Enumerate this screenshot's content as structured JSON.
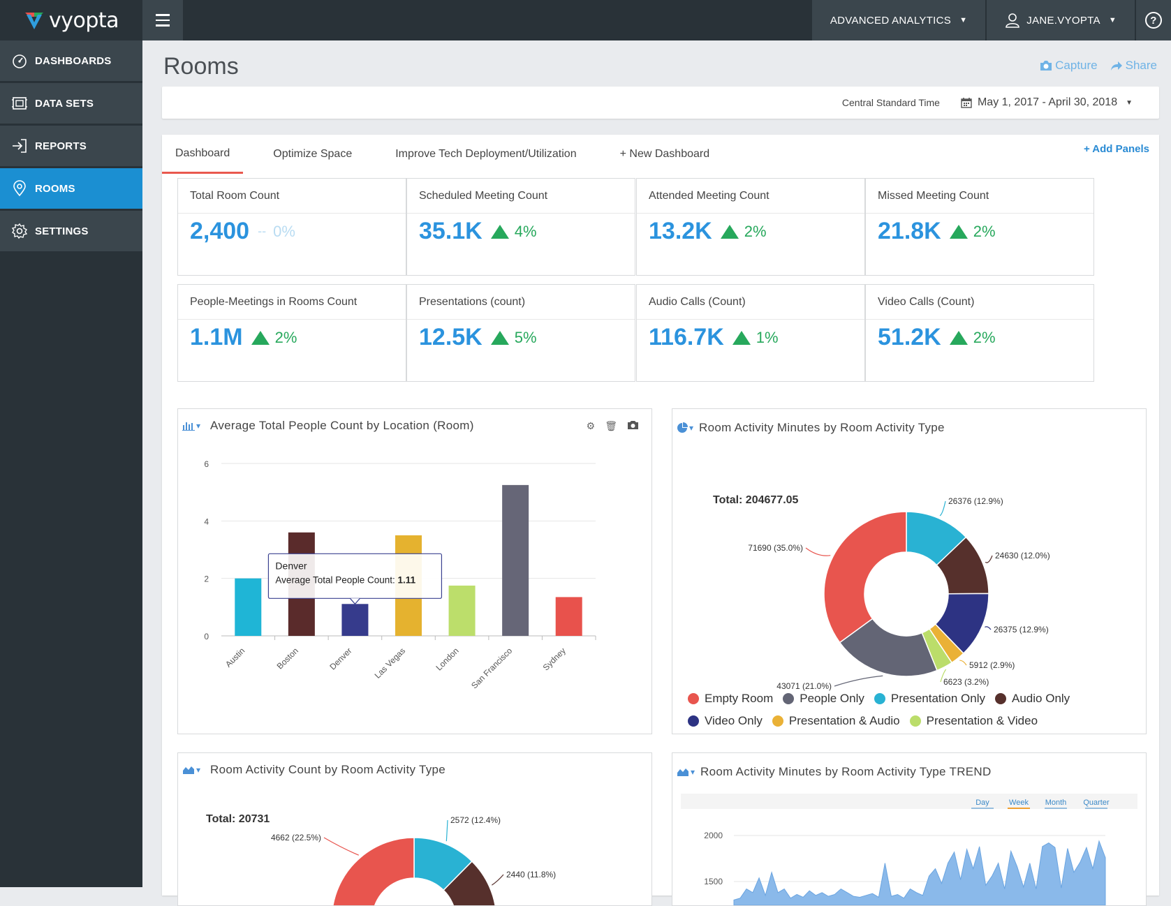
{
  "brand": {
    "name": "vyopta"
  },
  "topbar": {
    "analytics_label": "ADVANCED ANALYTICS",
    "user_label": "JANE.VYOPTA",
    "help_label": "?"
  },
  "sidebar": {
    "items": [
      {
        "label": "DASHBOARDS",
        "icon": "gauge-icon"
      },
      {
        "label": "DATA SETS",
        "icon": "dataset-icon"
      },
      {
        "label": "REPORTS",
        "icon": "login-arrow-icon"
      },
      {
        "label": "ROOMS",
        "icon": "location-pin-icon",
        "active": true
      },
      {
        "label": "SETTINGS",
        "icon": "gear-icon"
      }
    ]
  },
  "page": {
    "title": "Rooms",
    "capture_label": "Capture",
    "share_label": "Share",
    "timezone": "Central Standard Time",
    "date_range": "May 1, 2017 - April 30, 2018"
  },
  "tabs": [
    {
      "label": "Dashboard",
      "active": true
    },
    {
      "label": "Optimize Space"
    },
    {
      "label": "Improve Tech Deployment/Utilization"
    },
    {
      "label": "+ New Dashboard"
    }
  ],
  "add_panels_label": "+ Add Panels",
  "stats": [
    {
      "title": "Total Room Count",
      "value": "2,400",
      "delta": "0%",
      "trend": "flat",
      "flat_sep": "--"
    },
    {
      "title": "Scheduled Meeting Count",
      "value": "35.1K",
      "delta": "4%",
      "trend": "up"
    },
    {
      "title": "Attended Meeting Count",
      "value": "13.2K",
      "delta": "2%",
      "trend": "up"
    },
    {
      "title": "Missed Meeting Count",
      "value": "21.8K",
      "delta": "2%",
      "trend": "up"
    },
    {
      "title": "People-Meetings in Rooms Count",
      "value": "1.1M",
      "delta": "2%",
      "trend": "up"
    },
    {
      "title": "Presentations (count)",
      "value": "12.5K",
      "delta": "5%",
      "trend": "up"
    },
    {
      "title": "Audio Calls (Count)",
      "value": "116.7K",
      "delta": "1%",
      "trend": "up"
    },
    {
      "title": "Video Calls (Count)",
      "value": "51.2K",
      "delta": "2%",
      "trend": "up"
    }
  ],
  "panels": {
    "bar": {
      "title": "Average Total People Count by Location (Room)"
    },
    "donut1": {
      "title": "Room Activity Minutes by Room Activity Type",
      "total": "Total: 204677.05"
    },
    "donut2": {
      "title": "Room Activity Count by Room Activity Type",
      "total": "Total: 20731"
    },
    "trend": {
      "title": "Room Activity Minutes by Room Activity Type TREND",
      "ranges": [
        "Day",
        "Week",
        "Month",
        "Quarter"
      ],
      "active_range": "Week"
    }
  },
  "legend": [
    {
      "label": "Empty Room",
      "color": "#e8554e"
    },
    {
      "label": "People Only",
      "color": "#636575"
    },
    {
      "label": "Presentation Only",
      "color": "#29b2d3"
    },
    {
      "label": "Audio Only",
      "color": "#56302c"
    },
    {
      "label": "Video Only",
      "color": "#2d3383"
    },
    {
      "label": "Presentation & Audio",
      "color": "#eab136"
    },
    {
      "label": "Presentation & Video",
      "color": "#bbdd6a"
    }
  ],
  "tooltip": {
    "title": "Denver",
    "label": "Average Total People Count:",
    "value": "1.11"
  },
  "chart_data": [
    {
      "type": "bar",
      "title": "Average Total People Count by Location (Room)",
      "categories": [
        "Austin",
        "Boston",
        "Denver",
        "Las Vegas",
        "London",
        "San Francisco",
        "Sydney"
      ],
      "values": [
        2.0,
        3.6,
        1.11,
        3.5,
        1.75,
        5.25,
        1.35
      ],
      "colors": [
        "#1fb5d6",
        "#5a2b2b",
        "#363b8c",
        "#e5b22f",
        "#bcde6b",
        "#666677",
        "#e8524c"
      ],
      "ylim": [
        0,
        6
      ],
      "yticks": [
        0,
        2,
        4,
        6
      ],
      "grid": true
    },
    {
      "type": "pie",
      "title": "Room Activity Minutes by Room Activity Type",
      "slices": [
        {
          "name": "Presentation Only",
          "value": 26376,
          "label": "26376 (12.9%)"
        },
        {
          "name": "Audio Only",
          "value": 24630,
          "label": "24630 (12.0%)"
        },
        {
          "name": "Video Only",
          "value": 26375,
          "label": "26375 (12.9%)"
        },
        {
          "name": "Presentation & Audio",
          "value": 5912,
          "label": "5912 (2.9%)"
        },
        {
          "name": "Presentation & Video",
          "value": 6623,
          "label": "6623 (3.2%)"
        },
        {
          "name": "People Only",
          "value": 43071,
          "label": "43071 (21.0%)"
        },
        {
          "name": "Empty Room",
          "value": 71690,
          "label": "71690 (35.0%)"
        }
      ]
    },
    {
      "type": "pie",
      "title": "Room Activity Count by Room Activity Type",
      "slices": [
        {
          "name": "Presentation Only",
          "value": 2572,
          "label": "2572 (12.4%)"
        },
        {
          "name": "Audio Only",
          "value": 2440,
          "label": "2440 (11.8%)"
        },
        {
          "name": "Empty Room",
          "value": 4662,
          "label": "4662 (22.5%)"
        }
      ]
    },
    {
      "type": "area",
      "title": "Room Activity Minutes by Room Activity Type TREND",
      "yticks": [
        1500,
        2000
      ],
      "values": [
        1300,
        1320,
        1420,
        1380,
        1540,
        1350,
        1600,
        1380,
        1420,
        1320,
        1360,
        1330,
        1400,
        1350,
        1380,
        1340,
        1360,
        1420,
        1380,
        1340,
        1330,
        1350,
        1370,
        1330,
        1700,
        1340,
        1360,
        1320,
        1420,
        1380,
        1350,
        1560,
        1640,
        1480,
        1700,
        1820,
        1520,
        1850,
        1640,
        1880,
        1460,
        1560,
        1700,
        1420,
        1830,
        1660,
        1440,
        1700,
        1420,
        1880,
        1920,
        1870,
        1430,
        1860,
        1600,
        1710,
        1870,
        1640,
        1940,
        1760
      ]
    }
  ]
}
